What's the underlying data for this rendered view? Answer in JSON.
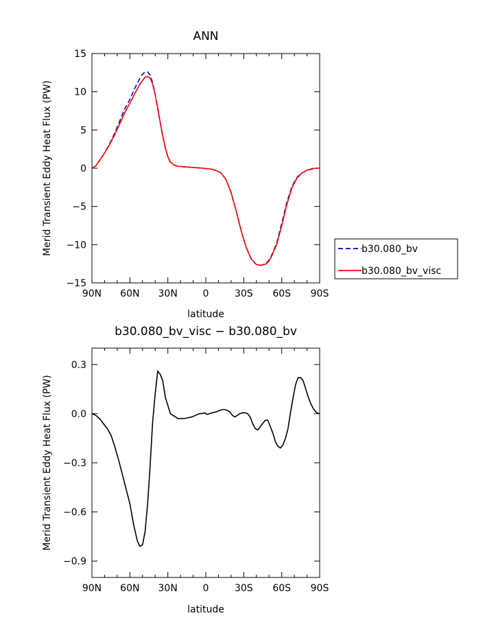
{
  "chart_data": [
    {
      "type": "line",
      "title": "ANN",
      "xlabel": "latitude",
      "ylabel": "Merid Transient Eddy Heat Flux (PW)",
      "xlim": [
        90,
        -90
      ],
      "ylim": [
        -15,
        15
      ],
      "xticks": [
        {
          "v": 90,
          "label": "90N"
        },
        {
          "v": 60,
          "label": "60N"
        },
        {
          "v": 30,
          "label": "30N"
        },
        {
          "v": 0,
          "label": "0"
        },
        {
          "v": -30,
          "label": "30S"
        },
        {
          "v": -60,
          "label": "60S"
        },
        {
          "v": -90,
          "label": "90S"
        }
      ],
      "yticks": [
        {
          "v": 15,
          "label": "15"
        },
        {
          "v": 10,
          "label": "10"
        },
        {
          "v": 5,
          "label": "5"
        },
        {
          "v": 0,
          "label": "0"
        },
        {
          "v": -5,
          "label": "−5"
        },
        {
          "v": -10,
          "label": "−10"
        },
        {
          "v": -15,
          "label": "−15"
        }
      ],
      "legend": "right",
      "series": [
        {
          "name": "b30.080_bv",
          "color": "#0000cc",
          "dash": true,
          "x": [
            90,
            87,
            84,
            80,
            76,
            72,
            68,
            64,
            60,
            56,
            52,
            50,
            48,
            46,
            44,
            42,
            40,
            38,
            36,
            34,
            32,
            30,
            28,
            25,
            22,
            18,
            14,
            10,
            6,
            2,
            0,
            -4,
            -8,
            -12,
            -16,
            -20,
            -24,
            -28,
            -32,
            -36,
            -40,
            -44,
            -48,
            -50,
            -52,
            -56,
            -60,
            -64,
            -68,
            -72,
            -76,
            -80,
            -84,
            -88,
            -90
          ],
          "y": [
            0.0,
            0.3,
            1.0,
            2.0,
            3.2,
            4.6,
            6.2,
            7.8,
            9.0,
            10.5,
            11.8,
            12.3,
            12.6,
            12.6,
            12.2,
            11.2,
            9.6,
            7.8,
            5.9,
            4.1,
            2.6,
            1.5,
            0.8,
            0.4,
            0.25,
            0.2,
            0.15,
            0.1,
            0.05,
            0.0,
            -0.05,
            -0.1,
            -0.3,
            -0.6,
            -1.5,
            -3.2,
            -5.6,
            -8.2,
            -10.4,
            -11.9,
            -12.6,
            -12.7,
            -12.4,
            -12.0,
            -11.4,
            -9.8,
            -7.2,
            -4.5,
            -2.4,
            -1.2,
            -0.6,
            -0.3,
            -0.1,
            0.0,
            0.0
          ]
        },
        {
          "name": "b30.080_bv_visc",
          "color": "#ff0000",
          "dash": false,
          "x": [
            90,
            87,
            84,
            80,
            76,
            72,
            68,
            64,
            60,
            56,
            52,
            50,
            48,
            46,
            44,
            42,
            40,
            38,
            36,
            34,
            32,
            30,
            28,
            25,
            22,
            18,
            14,
            10,
            6,
            2,
            0,
            -4,
            -8,
            -12,
            -16,
            -20,
            -24,
            -28,
            -32,
            -36,
            -40,
            -44,
            -48,
            -50,
            -52,
            -56,
            -60,
            -64,
            -68,
            -72,
            -76,
            -80,
            -84,
            -88,
            -90
          ],
          "y": [
            0.0,
            0.3,
            1.0,
            2.0,
            3.1,
            4.4,
            5.8,
            7.3,
            8.5,
            9.8,
            11.0,
            11.5,
            11.9,
            12.0,
            11.8,
            11.0,
            9.6,
            7.9,
            6.0,
            4.2,
            2.7,
            1.5,
            0.8,
            0.4,
            0.25,
            0.2,
            0.15,
            0.1,
            0.05,
            0.0,
            -0.05,
            -0.1,
            -0.3,
            -0.6,
            -1.5,
            -3.2,
            -5.6,
            -8.2,
            -10.4,
            -11.9,
            -12.6,
            -12.7,
            -12.5,
            -12.1,
            -11.5,
            -10.0,
            -7.5,
            -4.8,
            -2.6,
            -1.3,
            -0.6,
            -0.25,
            -0.05,
            0.0,
            0.0
          ]
        }
      ]
    },
    {
      "type": "line",
      "title": "b30.080_bv_visc − b30.080_bv",
      "xlabel": "latitude",
      "ylabel": "Merid Transient Eddy Heat Flux (PW)",
      "xlim": [
        90,
        -90
      ],
      "ylim": [
        -1.0,
        0.4
      ],
      "xticks": [
        {
          "v": 90,
          "label": "90N"
        },
        {
          "v": 60,
          "label": "60N"
        },
        {
          "v": 30,
          "label": "30N"
        },
        {
          "v": 0,
          "label": "0"
        },
        {
          "v": -30,
          "label": "30S"
        },
        {
          "v": -60,
          "label": "60S"
        },
        {
          "v": -90,
          "label": "90S"
        }
      ],
      "yticks": [
        {
          "v": 0.3,
          "label": "0.3"
        },
        {
          "v": 0.0,
          "label": "0.0"
        },
        {
          "v": -0.3,
          "label": "−0.3"
        },
        {
          "v": -0.6,
          "label": "−0.6"
        },
        {
          "v": -0.9,
          "label": "−0.9"
        }
      ],
      "series": [
        {
          "color": "#000000",
          "dash": false,
          "x": [
            90,
            87,
            84,
            81,
            78,
            75,
            72,
            69,
            66,
            63,
            60,
            57,
            54,
            52,
            50,
            48,
            46,
            44,
            42,
            40,
            38,
            36,
            34,
            32,
            30,
            28,
            26,
            24,
            22,
            20,
            17,
            14,
            11,
            8,
            5,
            3,
            1,
            -1,
            -3,
            -5,
            -8,
            -11,
            -13,
            -15,
            -17,
            -19,
            -21,
            -23,
            -25,
            -27,
            -29,
            -31,
            -33,
            -35,
            -37,
            -39,
            -41,
            -43,
            -45,
            -47,
            -49,
            -51,
            -53,
            -55,
            -57,
            -59,
            -61,
            -63,
            -65,
            -67,
            -69,
            -71,
            -73,
            -75,
            -77,
            -79,
            -81,
            -83,
            -85,
            -87,
            -89,
            -90
          ],
          "y": [
            0.0,
            -0.01,
            -0.03,
            -0.06,
            -0.09,
            -0.13,
            -0.2,
            -0.28,
            -0.37,
            -0.46,
            -0.55,
            -0.68,
            -0.78,
            -0.81,
            -0.8,
            -0.72,
            -0.55,
            -0.32,
            -0.05,
            0.12,
            0.26,
            0.24,
            0.2,
            0.1,
            0.05,
            0.0,
            -0.01,
            -0.02,
            -0.03,
            -0.03,
            -0.03,
            -0.025,
            -0.02,
            -0.01,
            0.0,
            0.0,
            0.005,
            -0.005,
            0.0,
            0.005,
            0.01,
            0.02,
            0.025,
            0.025,
            0.02,
            0.01,
            -0.01,
            -0.02,
            -0.01,
            0.0,
            0.005,
            0.005,
            0.0,
            -0.02,
            -0.06,
            -0.09,
            -0.1,
            -0.08,
            -0.06,
            -0.04,
            -0.04,
            -0.08,
            -0.12,
            -0.17,
            -0.2,
            -0.21,
            -0.19,
            -0.15,
            -0.09,
            0.01,
            0.1,
            0.18,
            0.22,
            0.22,
            0.2,
            0.15,
            0.1,
            0.06,
            0.03,
            0.01,
            0.0,
            0.0
          ]
        }
      ]
    }
  ]
}
